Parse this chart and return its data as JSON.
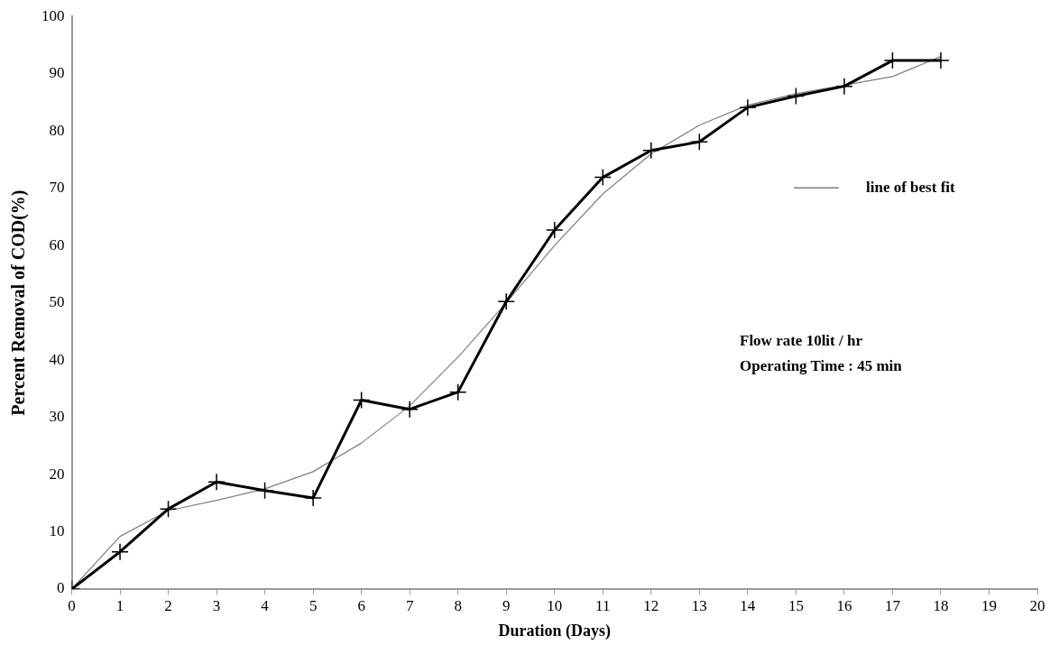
{
  "chart_data": {
    "type": "line",
    "xlabel": "Duration (Days)",
    "ylabel": "Percent Removal of COD(%)",
    "x": [
      0,
      1,
      2,
      3,
      4,
      5,
      6,
      7,
      8,
      9,
      10,
      11,
      12,
      13,
      14,
      15,
      16,
      17,
      18
    ],
    "xlim": [
      0,
      20
    ],
    "xticks": [
      0,
      1,
      2,
      3,
      4,
      5,
      6,
      7,
      8,
      9,
      10,
      11,
      12,
      13,
      14,
      15,
      16,
      17,
      18,
      19,
      20
    ],
    "ylim": [
      0,
      100
    ],
    "yticks": [
      0,
      10,
      20,
      30,
      40,
      50,
      60,
      70,
      80,
      90,
      100
    ],
    "grid": false,
    "legend": "right",
    "series": [
      {
        "color": "#000000",
        "marker": "cross",
        "values": [
          0,
          6.5,
          14,
          18.7,
          17.2,
          15.9,
          33,
          31.4,
          34.4,
          50.2,
          62.7,
          71.9,
          76.6,
          78.1,
          84.1,
          86.1,
          87.8,
          92.3,
          92.3
        ]
      },
      {
        "name": "line of best fit",
        "color": "#7f7f7f",
        "marker": "none",
        "values": [
          0,
          9.2,
          13.7,
          15.5,
          17.5,
          20.5,
          25.5,
          32,
          40.5,
          50,
          60,
          69,
          76,
          81,
          84.5,
          86.5,
          88,
          89.5,
          93
        ]
      }
    ],
    "annotations": [
      "Flow rate 10lit / hr",
      "Operating Time : 45 min"
    ]
  }
}
